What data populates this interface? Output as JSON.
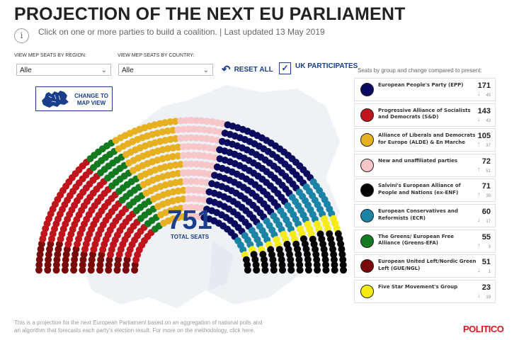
{
  "header": {
    "title": "PROJECTION OF THE NEXT EU PARLIAMENT",
    "info_icon_glyph": "i",
    "subtitle": "Click on one or more parties to build a coalition. | Last updated 13 May 2019"
  },
  "filters": {
    "region_label": "VIEW MEP SEATS BY REGION:",
    "region_value": "Alle",
    "country_label": "VIEW MEP SEATS BY COUNTRY:",
    "country_value": "Alle",
    "reset_label": "RESET ALL",
    "uk_label": "UK PARTICIPATES",
    "uk_checked": true
  },
  "map_button": {
    "label_line1": "CHANGE TO",
    "label_line2": "MAP VIEW"
  },
  "totals": {
    "seats": "751",
    "label": "TOTAL SEATS"
  },
  "legend": {
    "title": "Seats by group and change compared to present:",
    "parties": [
      {
        "name": "European People's Party (EPP)",
        "color": "#0a0a5e",
        "seats": "171",
        "change": "45",
        "trend": "down"
      },
      {
        "name": "Progressive Alliance of Socialists and Democrats (S&D)",
        "color": "#c0141c",
        "seats": "143",
        "change": "43",
        "trend": "down"
      },
      {
        "name": "Alliance of Liberals and Democrats for Europe (ALDE) & En Marche",
        "color": "#e6b020",
        "seats": "105",
        "change": "37",
        "trend": "up"
      },
      {
        "name": "New and unaffiliated parties",
        "color": "#f6c6c8",
        "seats": "72",
        "change": "51",
        "trend": "up"
      },
      {
        "name": "Salvini's European Alliance of People and Nations (ex-ENF)",
        "color": "#050505",
        "seats": "71",
        "change": "35",
        "trend": "up"
      },
      {
        "name": "European Conservatives and Reformists (ECR)",
        "color": "#1b84a6",
        "seats": "60",
        "change": "17",
        "trend": "down"
      },
      {
        "name": "The Greens/ European Free Alliance (Greens-EFA)",
        "color": "#137a1f",
        "seats": "55",
        "change": "3",
        "trend": "up"
      },
      {
        "name": "European United Left/Nordic Green Left (GUE/NGL)",
        "color": "#7a0a0a",
        "seats": "51",
        "change": "1",
        "trend": "down"
      },
      {
        "name": "Five Star Movement's Group",
        "color": "#f4ec14",
        "seats": "23",
        "change": "19",
        "trend": "down"
      }
    ]
  },
  "hemicycle_order": [
    {
      "party": "European United Left/Nordic Green Left (GUE/NGL)",
      "color": "#7a0a0a",
      "seats": 51
    },
    {
      "party": "Progressive Alliance of Socialists and Democrats (S&D)",
      "color": "#c0141c",
      "seats": 143
    },
    {
      "party": "The Greens/ European Free Alliance (Greens-EFA)",
      "color": "#137a1f",
      "seats": 55
    },
    {
      "party": "Alliance of Liberals and Democrats for Europe (ALDE) & En Marche",
      "color": "#e6b020",
      "seats": 105
    },
    {
      "party": "New and unaffiliated parties",
      "color": "#f6c6c8",
      "seats": 72
    },
    {
      "party": "European People's Party (EPP)",
      "color": "#0a0a5e",
      "seats": 171
    },
    {
      "party": "European Conservatives and Reformists (ECR)",
      "color": "#1b84a6",
      "seats": 60
    },
    {
      "party": "Five Star Movement's Group",
      "color": "#f4ec14",
      "seats": 23
    },
    {
      "party": "Salvini's European Alliance of People and Nations (ex-ENF)",
      "color": "#050505",
      "seats": 71
    }
  ],
  "footer": {
    "line1": "This is a projection for the next European Parliament based on an aggregation of national polls and",
    "line2": "an algorithm that forecasts each party's election result. For more on the methodology, click here.",
    "logo": "POLITICO"
  }
}
